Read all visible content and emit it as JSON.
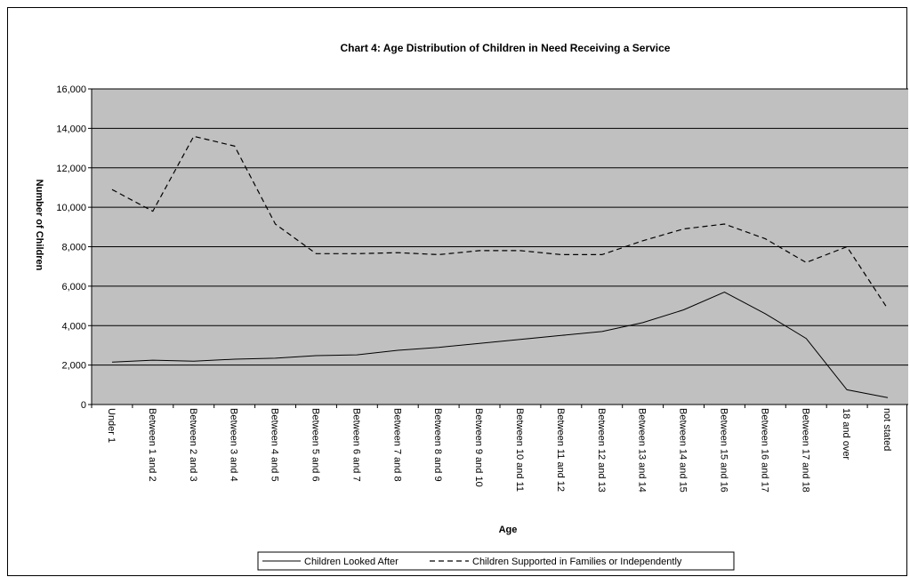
{
  "chart_data": {
    "type": "line",
    "title": "Chart 4: Age Distribution of Children in Need Receiving a Service",
    "xlabel": "Age",
    "ylabel": "Number of Children",
    "ylim": [
      0,
      16000
    ],
    "yticks": [
      "0",
      "2,000",
      "4,000",
      "6,000",
      "8,000",
      "10,000",
      "12,000",
      "14,000",
      "16,000"
    ],
    "grid": true,
    "legend_position": "bottom",
    "categories": [
      "Under 1",
      "Between 1 and 2",
      "Between 2 and 3",
      "Between 3 and 4",
      "Between 4 and 5",
      "Between 5 and 6",
      "Between 6 and 7",
      "Between 7 and 8",
      "Between 8 and 9",
      "Between 9 and 10",
      "Between 10 and 11",
      "Between 11 and 12",
      "Between 12 and 13",
      "Between 13 and 14",
      "Between 14 and 15",
      "Between 15 and 16",
      "Between 16 and 17",
      "Between 17 and 18",
      "18 and over",
      "not stated"
    ],
    "series": [
      {
        "name": "Children Looked After",
        "style": "solid",
        "color": "#000000",
        "values": [
          2150,
          2250,
          2200,
          2300,
          2350,
          2480,
          2520,
          2750,
          2900,
          3100,
          3300,
          3500,
          3700,
          4150,
          4800,
          5700,
          4600,
          3350,
          750,
          350
        ]
      },
      {
        "name": "Children Supported in Families or Independently",
        "style": "dashed",
        "color": "#000000",
        "values": [
          10900,
          9800,
          13600,
          13100,
          9150,
          7650,
          7650,
          7700,
          7600,
          7800,
          7800,
          7600,
          7600,
          8300,
          8900,
          9150,
          8400,
          7200,
          8000,
          4850
        ]
      }
    ],
    "colors": {
      "plot_background": "#c0c0c0",
      "gridline": "#000000",
      "line": "#000000"
    }
  }
}
